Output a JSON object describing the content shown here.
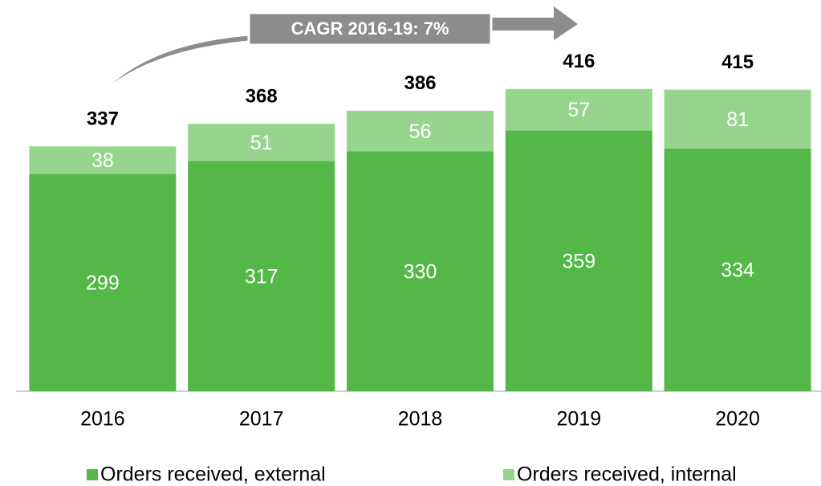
{
  "chart_data": {
    "type": "stacked_bar",
    "annotation": "CAGR 2016-19: 7%",
    "categories": [
      "2016",
      "2017",
      "2018",
      "2019",
      "2020"
    ],
    "series": [
      {
        "name": "Orders received, external",
        "color": "#53b848",
        "values": [
          299,
          317,
          330,
          359,
          334
        ]
      },
      {
        "name": "Orders received, internal",
        "color": "#97d58f",
        "values": [
          38,
          51,
          56,
          57,
          81
        ]
      }
    ],
    "totals": [
      337,
      368,
      386,
      416,
      415
    ],
    "ylim": [
      0,
      450
    ]
  }
}
